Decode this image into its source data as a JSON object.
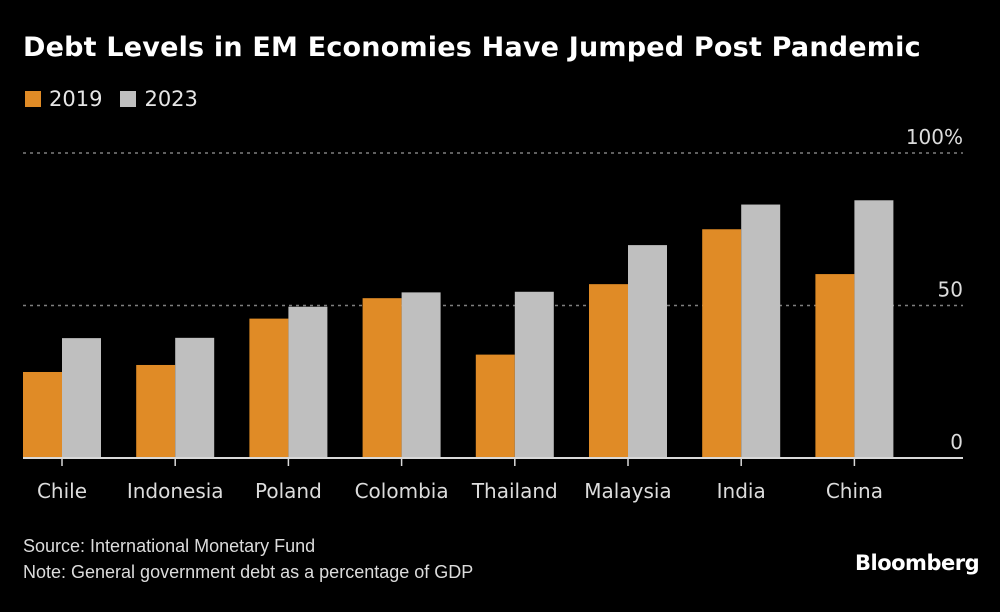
{
  "title": "Debt Levels in EM Economies Have Jumped Post Pandemic",
  "colors": {
    "s2019": "#E08B26",
    "s2023": "#BFBFBF",
    "background": "#000000",
    "grid": "#7f7f7f",
    "axis": "#d9d9d9",
    "text": "#dcdcdc"
  },
  "footer": {
    "source": "Source: International Monetary Fund",
    "note": "Note: General government debt as a percentage of GDP",
    "brand": "Bloomberg"
  },
  "chart_data": {
    "type": "bar",
    "title": "Debt Levels in EM Economies Have Jumped Post Pandemic",
    "xlabel": "",
    "ylabel": "General government debt (% of GDP)",
    "categories": [
      "Chile",
      "Indonesia",
      "Poland",
      "Colombia",
      "Thailand",
      "Malaysia",
      "India",
      "China"
    ],
    "series": [
      {
        "name": "2019",
        "values": [
          28.2,
          30.5,
          45.7,
          52.4,
          33.9,
          57.0,
          75.0,
          60.3
        ]
      },
      {
        "name": "2023",
        "values": [
          39.3,
          39.4,
          49.6,
          54.3,
          54.5,
          69.8,
          83.1,
          84.5
        ]
      }
    ],
    "ylim": [
      0,
      100
    ],
    "yticks": [
      0,
      50,
      100
    ],
    "ytick_labels": [
      "0",
      "50",
      "100%"
    ],
    "grid": true,
    "legend": "top-left"
  }
}
